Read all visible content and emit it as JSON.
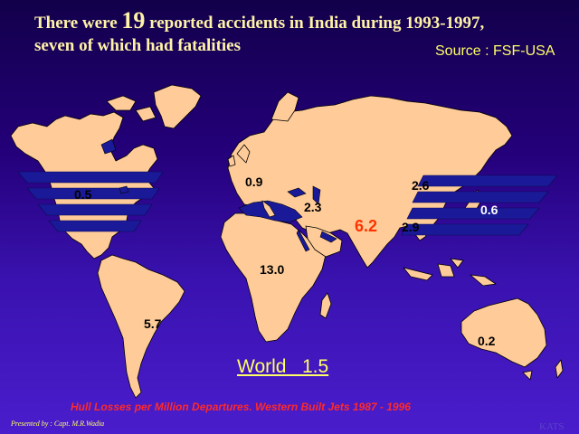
{
  "headline": {
    "line1_pre": "There were ",
    "line1_number": "19",
    "line1_post": " reported accidents in India during 1993-1997,",
    "line2": "seven of which had fatalities"
  },
  "source": "Source : FSF-USA",
  "regions": [
    {
      "id": "north-america",
      "value": "0.5"
    },
    {
      "id": "europe",
      "value": "0.9"
    },
    {
      "id": "middle-east",
      "value": "2.3"
    },
    {
      "id": "india",
      "value": "6.2"
    },
    {
      "id": "china",
      "value": "2.6"
    },
    {
      "id": "southeast-asia",
      "value": "2.9"
    },
    {
      "id": "japan",
      "value": "0.6"
    },
    {
      "id": "africa",
      "value": "13.0"
    },
    {
      "id": "south-america",
      "value": "5.7"
    },
    {
      "id": "australia",
      "value": "0.2"
    }
  ],
  "world": {
    "label": "World",
    "value": "1.5"
  },
  "caption": "Hull Losses per Million Departures. Western Built Jets  1987 - 1996",
  "credit": "Presented by : Capt. M.R.Wadia",
  "watermark": "KATS",
  "colors": {
    "land": "#ffcc99",
    "bands": "#1a1a99",
    "highlight": "#ff3300",
    "headline": "#fff3a8",
    "accent": "#ffff66"
  }
}
